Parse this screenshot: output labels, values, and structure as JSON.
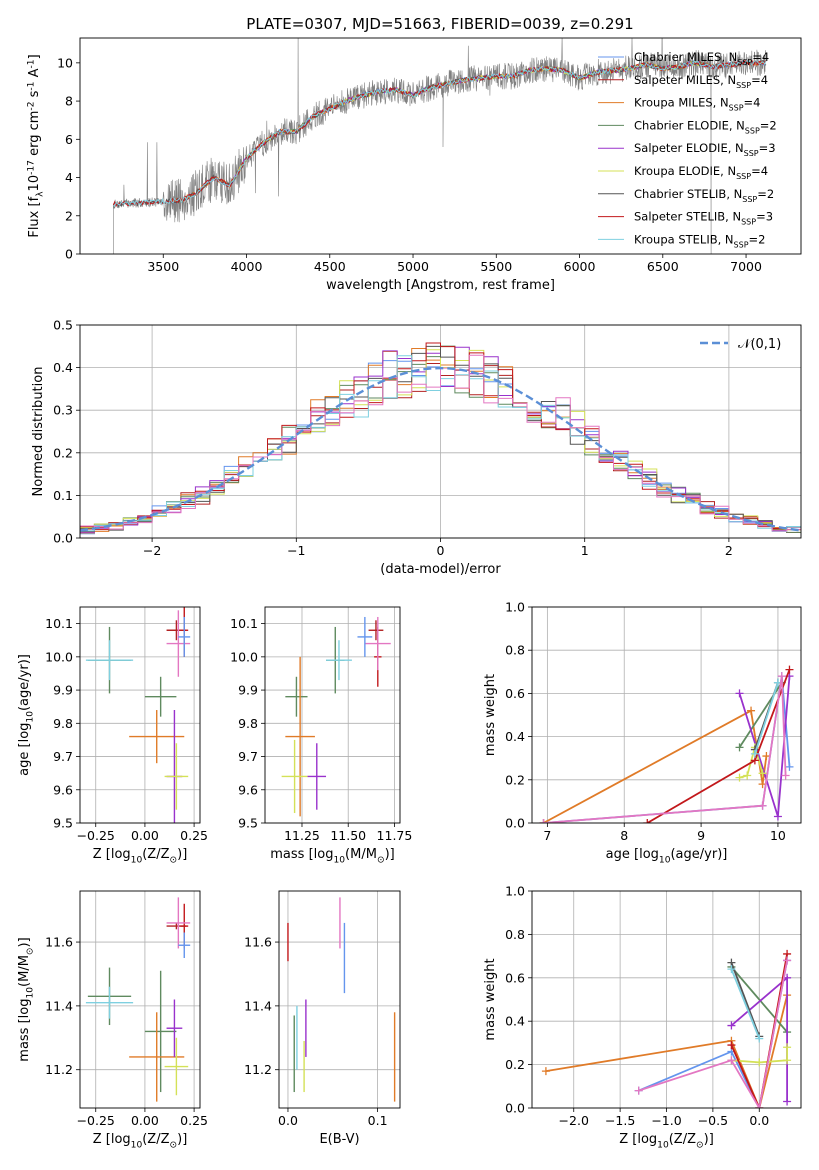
{
  "title": "PLATE=0307, MJD=51663, FIBERID=0039, z=0.291",
  "chart_data": [
    {
      "id": "spectrum",
      "type": "line",
      "xlabel": "wavelength [Angstrom, rest frame]",
      "ylabel": "Flux [f$_\\lambda$10$^{-17}$ erg cm$^{-2}$ s$^{-1}$ A$^{-1}$]",
      "xlim": [
        3000,
        7330
      ],
      "ylim": [
        0,
        11.3
      ],
      "xticks": [
        3500,
        4000,
        4500,
        5000,
        5500,
        6000,
        6500,
        7000
      ],
      "yticks": [
        0,
        2,
        4,
        6,
        8,
        10
      ],
      "grid": false,
      "legend_position": "right",
      "data_series": {
        "name": "data",
        "color": "#808080",
        "x_range": [
          3200,
          7120
        ]
      },
      "continuum_trend": {
        "x": [
          3200,
          3500,
          3600,
          3700,
          3800,
          3900,
          4000,
          4100,
          4200,
          4300,
          4400,
          4500,
          4600,
          4700,
          4800,
          4900,
          5000,
          5100,
          5200,
          5300,
          5400,
          5500,
          5600,
          5700,
          5800,
          5900,
          6000,
          6100,
          6200,
          6300,
          6400,
          6500,
          6600,
          6700,
          6800,
          6900,
          7000,
          7100
        ],
        "y": [
          2.6,
          2.75,
          2.8,
          3.2,
          4.0,
          3.6,
          5.0,
          5.8,
          6.4,
          6.4,
          7.2,
          7.6,
          8.0,
          8.3,
          8.5,
          8.6,
          8.3,
          8.7,
          8.9,
          9.1,
          9.2,
          9.3,
          9.3,
          9.6,
          9.7,
          9.6,
          9.2,
          9.5,
          9.6,
          9.7,
          9.9,
          9.7,
          9.8,
          10.0,
          9.8,
          9.9,
          10.0,
          10.0
        ]
      },
      "series": [
        {
          "name": "Chabrier MILES, N$_{SSP}$=4",
          "color": "#6495ed",
          "x_range": [
            3540,
            7120
          ]
        },
        {
          "name": "Salpeter MILES, N$_{SSP}$=4",
          "color": "#b22222",
          "x_range": [
            3540,
            7120
          ]
        },
        {
          "name": "Kroupa MILES, N$_{SSP}$=4",
          "color": "#e07b28",
          "x_range": [
            3540,
            7120
          ]
        },
        {
          "name": "Chabrier ELODIE, N$_{SSP}$=2",
          "color": "#5f8a5f",
          "x_range": [
            3900,
            6800
          ]
        },
        {
          "name": "Salpeter ELODIE, N$_{SSP}$=3",
          "color": "#9932cc",
          "x_range": [
            3900,
            6800
          ]
        },
        {
          "name": "Kroupa ELODIE, N$_{SSP}$=4",
          "color": "#d4e157",
          "x_range": [
            3900,
            6800
          ]
        },
        {
          "name": "Chabrier STELIB, N$_{SSP}$=2",
          "color": "#555555",
          "x_range": [
            3200,
            7120
          ]
        },
        {
          "name": "Salpeter STELIB, N$_{SSP}$=3",
          "color": "#c2181b",
          "x_range": [
            3200,
            7120
          ]
        },
        {
          "name": "Kroupa STELIB, N$_{SSP}$=2",
          "color": "#7fd0e0",
          "x_range": [
            3200,
            7120
          ]
        }
      ]
    },
    {
      "id": "residuals",
      "type": "histogram",
      "xlabel": "(data-model)/error",
      "ylabel": "Normed distribution",
      "xlim": [
        -2.5,
        2.5
      ],
      "ylim": [
        0,
        0.5
      ],
      "xticks": [
        -2,
        -1,
        0,
        1,
        2
      ],
      "yticks": [
        0.0,
        0.1,
        0.2,
        0.3,
        0.4,
        0.5
      ],
      "grid": true,
      "legend_position": "top-right",
      "reference_curve": {
        "name": "$\\mathcal{N}(0,1)$",
        "color": "#5b8fd6",
        "style": "dashed"
      },
      "bin_width": 0.1,
      "series_colors": [
        "#6495ed",
        "#b22222",
        "#e07b28",
        "#5f8a5f",
        "#9932cc",
        "#d4e157",
        "#555555",
        "#c2181b",
        "#7fd0e0",
        "#e377c2"
      ]
    },
    {
      "id": "age-vs-Z",
      "type": "errorbar",
      "xlabel": "Z [log$_{10}$(Z/Z$_\\odot$)]",
      "ylabel": "age  [log$_{10}$(age/yr)]",
      "xlim": [
        -0.33,
        0.28
      ],
      "ylim": [
        9.5,
        10.15
      ],
      "xticks": [
        -0.25,
        0.0,
        0.25
      ],
      "yticks": [
        9.5,
        9.6,
        9.7,
        9.8,
        9.9,
        10.0,
        10.1
      ],
      "grid": true,
      "points": [
        {
          "color": "#5f8a5f",
          "x": -0.18,
          "y": 9.99,
          "xerr": 0.11,
          "yerr": 0.1
        },
        {
          "color": "#7fd0e0",
          "x": -0.18,
          "y": 9.99,
          "xerr": 0.12,
          "yerr": 0.06
        },
        {
          "color": "#5f8a5f",
          "x": 0.08,
          "y": 9.88,
          "xerr": 0.08,
          "yerr": 0.06
        },
        {
          "color": "#e07b28",
          "x": 0.06,
          "y": 9.76,
          "xerr": 0.14,
          "yerr": 0.08
        },
        {
          "color": "#9932cc",
          "x": 0.15,
          "y": 9.64,
          "xerr": 0.04,
          "yerr": 0.2
        },
        {
          "color": "#d4e157",
          "x": 0.16,
          "y": 9.64,
          "xerr": 0.06,
          "yerr": 0.1
        },
        {
          "color": "#b22222",
          "x": 0.16,
          "y": 10.08,
          "xerr": 0.05,
          "yerr": 0.03
        },
        {
          "color": "#c2181b",
          "x": 0.2,
          "y": 10.08,
          "xerr": 0.02,
          "yerr": 0.08
        },
        {
          "color": "#e377c2",
          "x": 0.17,
          "y": 10.04,
          "xerr": 0.06,
          "yerr": 0.1
        },
        {
          "color": "#6495ed",
          "x": 0.2,
          "y": 10.06,
          "xerr": 0.03,
          "yerr": 0.06
        }
      ]
    },
    {
      "id": "age-vs-mass",
      "type": "errorbar",
      "xlabel": "mass [log$_{10}$(M/M$_\\odot$)]",
      "ylabel": "",
      "xlim": [
        11.05,
        11.78
      ],
      "ylim": [
        9.5,
        10.15
      ],
      "xticks": [
        11.25,
        11.5,
        11.75
      ],
      "yticks": [
        9.5,
        9.6,
        9.7,
        9.8,
        9.9,
        10.0,
        10.1
      ],
      "grid": true,
      "points": [
        {
          "color": "#5f8a5f",
          "x": 11.43,
          "y": 9.99,
          "xerr": 0.05,
          "yerr": 0.1
        },
        {
          "color": "#7fd0e0",
          "x": 11.45,
          "y": 9.99,
          "xerr": 0.07,
          "yerr": 0.06
        },
        {
          "color": "#5f8a5f",
          "x": 11.22,
          "y": 9.88,
          "xerr": 0.06,
          "yerr": 0.06
        },
        {
          "color": "#e07b28",
          "x": 11.24,
          "y": 9.76,
          "xerr": 0.08,
          "yerr": 0.24
        },
        {
          "color": "#9932cc",
          "x": 11.33,
          "y": 9.64,
          "xerr": 0.05,
          "yerr": 0.1
        },
        {
          "color": "#d4e157",
          "x": 11.21,
          "y": 9.64,
          "xerr": 0.07,
          "yerr": 0.11
        },
        {
          "color": "#b22222",
          "x": 11.65,
          "y": 10.08,
          "xerr": 0.04,
          "yerr": 0.03
        },
        {
          "color": "#c2181b",
          "x": 11.66,
          "y": 10.0,
          "xerr": 0.02,
          "yerr": 0.09
        },
        {
          "color": "#e377c2",
          "x": 11.66,
          "y": 10.04,
          "xerr": 0.07,
          "yerr": 0.08
        },
        {
          "color": "#6495ed",
          "x": 11.59,
          "y": 10.06,
          "xerr": 0.04,
          "yerr": 0.06
        }
      ]
    },
    {
      "id": "weight-vs-age",
      "type": "line",
      "xlabel": "age  [log$_{10}$(age/yr)]",
      "ylabel": "mass weight",
      "xlim": [
        6.8,
        10.3
      ],
      "ylim": [
        0,
        1
      ],
      "xticks": [
        7,
        8,
        9,
        10
      ],
      "yticks": [
        0.0,
        0.2,
        0.4,
        0.6,
        0.8,
        1.0
      ],
      "grid": true,
      "series": [
        {
          "color": "#6495ed",
          "x": [
            6.95,
            9.8,
            10.05,
            10.15
          ],
          "y": [
            0.0,
            0.08,
            0.68,
            0.26
          ]
        },
        {
          "color": "#e07b28",
          "x": [
            6.95,
            9.65,
            9.8,
            9.85
          ],
          "y": [
            0.0,
            0.52,
            0.18,
            0.31
          ]
        },
        {
          "color": "#5f8a5f",
          "x": [
            9.5,
            10.05
          ],
          "y": [
            0.35,
            0.65
          ]
        },
        {
          "color": "#9932cc",
          "x": [
            9.5,
            10.0,
            10.15
          ],
          "y": [
            0.6,
            0.03,
            0.68
          ]
        },
        {
          "color": "#d4e157",
          "x": [
            9.5,
            9.6,
            9.7,
            9.8
          ],
          "y": [
            0.21,
            0.22,
            0.35,
            0.23
          ]
        },
        {
          "color": "#555555",
          "x": [
            9.7,
            10.0
          ],
          "y": [
            0.34,
            0.65
          ]
        },
        {
          "color": "#c2181b",
          "x": [
            8.3,
            9.7,
            10.15
          ],
          "y": [
            0.0,
            0.29,
            0.71
          ]
        },
        {
          "color": "#7fd0e0",
          "x": [
            9.7,
            10.0
          ],
          "y": [
            0.32,
            0.65
          ]
        },
        {
          "color": "#e377c2",
          "x": [
            6.95,
            9.8,
            10.05,
            10.1
          ],
          "y": [
            0.0,
            0.08,
            0.68,
            0.22
          ]
        }
      ]
    },
    {
      "id": "mass-vs-Z",
      "type": "errorbar",
      "xlabel": "Z [log$_{10}$(Z/Z$_\\odot$)]",
      "ylabel": "mass [log$_{10}$(M/M$_\\odot$)]",
      "xlim": [
        -0.33,
        0.28
      ],
      "ylim": [
        11.08,
        11.76
      ],
      "xticks": [
        -0.25,
        0.0,
        0.25
      ],
      "yticks": [
        11.2,
        11.4,
        11.6
      ],
      "grid": true,
      "points": [
        {
          "color": "#5f8a5f",
          "x": -0.18,
          "y": 11.43,
          "xerr": 0.11,
          "yerr": 0.09
        },
        {
          "color": "#7fd0e0",
          "x": -0.18,
          "y": 11.41,
          "xerr": 0.12,
          "yerr": 0.05
        },
        {
          "color": "#5f8a5f",
          "x": 0.08,
          "y": 11.32,
          "xerr": 0.08,
          "yerr": 0.19
        },
        {
          "color": "#e07b28",
          "x": 0.06,
          "y": 11.24,
          "xerr": 0.14,
          "yerr": 0.14
        },
        {
          "color": "#9932cc",
          "x": 0.15,
          "y": 11.33,
          "xerr": 0.04,
          "yerr": 0.09
        },
        {
          "color": "#d4e157",
          "x": 0.16,
          "y": 11.21,
          "xerr": 0.06,
          "yerr": 0.09
        },
        {
          "color": "#b22222",
          "x": 0.16,
          "y": 11.65,
          "xerr": 0.05,
          "yerr": 0.01
        },
        {
          "color": "#c2181b",
          "x": 0.2,
          "y": 11.65,
          "xerr": 0.02,
          "yerr": 0.07
        },
        {
          "color": "#e377c2",
          "x": 0.17,
          "y": 11.66,
          "xerr": 0.06,
          "yerr": 0.08
        },
        {
          "color": "#6495ed",
          "x": 0.2,
          "y": 11.59,
          "xerr": 0.03,
          "yerr": 0.04
        }
      ]
    },
    {
      "id": "mass-vs-EBV",
      "type": "errorbar",
      "xlabel": "E(B-V)",
      "ylabel": "",
      "xlim": [
        -0.01,
        0.125
      ],
      "ylim": [
        11.08,
        11.76
      ],
      "xticks": [
        0.0,
        0.1
      ],
      "yticks": [
        11.2,
        11.4,
        11.6
      ],
      "grid": true,
      "points": [
        {
          "color": "#c2181b",
          "x": 0.0,
          "y": 11.6,
          "yerr": 0.06
        },
        {
          "color": "#5f8a5f",
          "x": 0.007,
          "y": 11.25,
          "yerr": 0.12
        },
        {
          "color": "#7fd0e0",
          "x": 0.01,
          "y": 11.3,
          "yerr": 0.1
        },
        {
          "color": "#d4e157",
          "x": 0.018,
          "y": 11.21,
          "yerr": 0.08
        },
        {
          "color": "#9932cc",
          "x": 0.02,
          "y": 11.33,
          "yerr": 0.09
        },
        {
          "color": "#e377c2",
          "x": 0.058,
          "y": 11.66,
          "yerr": 0.08
        },
        {
          "color": "#6495ed",
          "x": 0.063,
          "y": 11.55,
          "yerr": 0.11
        },
        {
          "color": "#e07b28",
          "x": 0.119,
          "y": 11.24,
          "yerr": 0.14
        }
      ]
    },
    {
      "id": "weight-vs-Z",
      "type": "line",
      "xlabel": "Z [log$_{10}$(Z/Z$_\\odot$)]",
      "ylabel": "mass weight",
      "xlim": [
        -2.45,
        0.45
      ],
      "ylim": [
        0,
        1
      ],
      "xticks": [
        -2.0,
        -1.5,
        -1.0,
        -0.5,
        0.0
      ],
      "yticks": [
        0.0,
        0.2,
        0.4,
        0.6,
        0.8,
        1.0
      ],
      "grid": true,
      "series": [
        {
          "color": "#6495ed",
          "x": [
            -1.3,
            -0.3,
            0.0,
            0.3
          ],
          "y": [
            0.08,
            0.26,
            0.0,
            0.68
          ]
        },
        {
          "color": "#e07b28",
          "x": [
            -2.3,
            -0.3,
            0.0,
            0.3
          ],
          "y": [
            0.17,
            0.31,
            0.0,
            0.52
          ]
        },
        {
          "color": "#5f8a5f",
          "x": [
            -0.3,
            0.3
          ],
          "y": [
            0.65,
            0.35
          ]
        },
        {
          "color": "#9932cc",
          "x": [
            -0.3,
            0.3,
            0.3
          ],
          "y": [
            0.38,
            0.6,
            0.03
          ]
        },
        {
          "color": "#d4e157",
          "x": [
            -0.3,
            0.0,
            0.3,
            0.3
          ],
          "y": [
            0.22,
            0.21,
            0.22,
            0.28
          ]
        },
        {
          "color": "#555555",
          "x": [
            -0.3,
            0.0
          ],
          "y": [
            0.67,
            0.33
          ]
        },
        {
          "color": "#c2181b",
          "x": [
            -0.3,
            0.0,
            0.3
          ],
          "y": [
            0.29,
            0.0,
            0.71
          ]
        },
        {
          "color": "#7fd0e0",
          "x": [
            -0.3,
            0.0
          ],
          "y": [
            0.64,
            0.32
          ]
        },
        {
          "color": "#e377c2",
          "x": [
            -1.3,
            -0.3,
            0.0,
            0.3
          ],
          "y": [
            0.08,
            0.22,
            0.0,
            0.68
          ]
        }
      ]
    }
  ]
}
